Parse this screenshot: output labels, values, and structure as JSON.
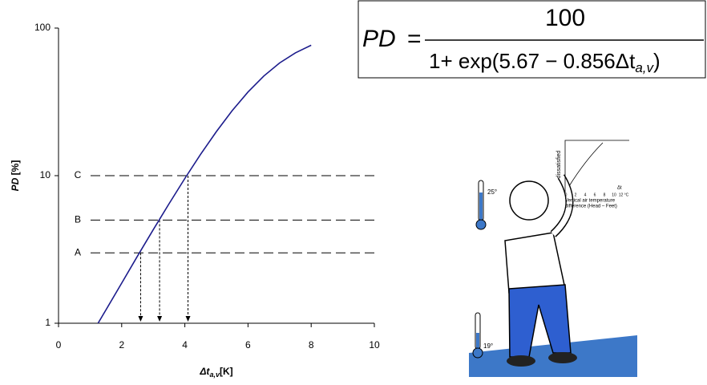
{
  "chart_data": {
    "type": "line",
    "ylabel": {
      "symbol": "PD",
      "unit": "[%]"
    },
    "xlabel": {
      "symbol": "Δt",
      "subscript": "a,v",
      "unit": "[K]"
    },
    "x": [
      1.25,
      1.5,
      2,
      2.5,
      3,
      3.5,
      4,
      4.5,
      5,
      5.5,
      6,
      6.5,
      7,
      7.5,
      8
    ],
    "series": [
      {
        "color": "#1c1c8c",
        "values": [
          1.0,
          1.23,
          1.87,
          2.85,
          4.31,
          6.45,
          9.57,
          13.97,
          19.9,
          27.6,
          36.9,
          47.3,
          58.0,
          67.9,
          76.5
        ]
      }
    ],
    "xlim": [
      0,
      10
    ],
    "xticks": [
      0,
      2,
      4,
      6,
      8,
      10
    ],
    "ylim": [
      1,
      100
    ],
    "yticks": [
      1,
      10,
      100
    ],
    "log_y": true,
    "reference_lines": [
      {
        "label": "A",
        "y": 3,
        "x": 2.6
      },
      {
        "label": "B",
        "y": 5,
        "x": 3.2
      },
      {
        "label": "C",
        "y": 10,
        "x": 4.1
      }
    ],
    "formula": {
      "lhs": "PD",
      "eq": "=",
      "numerator": "100",
      "denominator_prefix": "1+ exp(5.67 − 0.856Δt",
      "denominator_sub": "a,v",
      "denominator_suffix": ")"
    },
    "illustration": {
      "temp_high": "25°",
      "temp_low": "19°",
      "inset_ylabel": "dissatisfied",
      "inset_xlabel": "Δt",
      "inset_caption_1": "Vertical air temperature",
      "inset_caption_2": "difference (Head – Feet)",
      "inset_xticks": [
        "0",
        "2",
        "4",
        "6",
        "8",
        "10",
        "12 °C"
      ]
    }
  }
}
